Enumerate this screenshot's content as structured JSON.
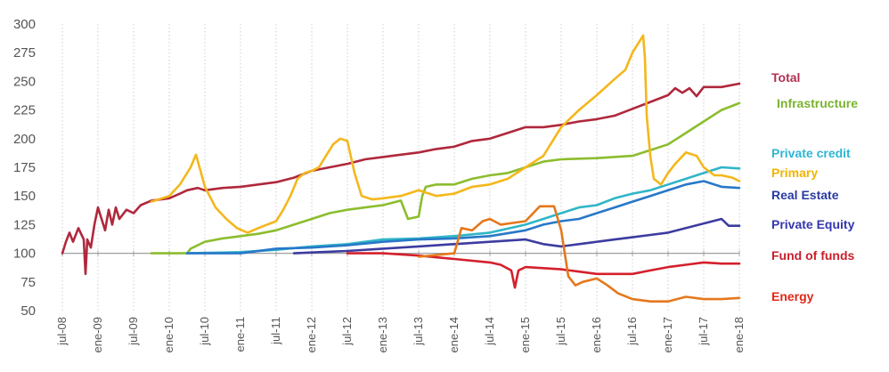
{
  "chart_data": {
    "type": "line",
    "title": "",
    "xlabel": "",
    "ylabel": "",
    "ylim": [
      50,
      300
    ],
    "yticks": [
      50,
      75,
      100,
      125,
      150,
      175,
      200,
      225,
      250,
      275,
      300
    ],
    "baseline_value": 100,
    "x_tick_labels": [
      "jul-08",
      "ene-09",
      "jul-09",
      "ene-10",
      "jul-10",
      "ene-11",
      "jul-11",
      "ene-12",
      "jul-12",
      "ene-13",
      "jul-13",
      "ene-14",
      "jul-14",
      "ene-15",
      "jul-15",
      "ene-16",
      "jul-16",
      "ene-17",
      "jul-17",
      "ene-18"
    ],
    "grid": "vertical dotted",
    "legend_placement": "right, at series end values",
    "series": [
      {
        "name": "Total",
        "color": "#b0283c",
        "label_color": "#b03050",
        "points": [
          [
            0,
            100
          ],
          [
            0.1,
            110
          ],
          [
            0.2,
            118
          ],
          [
            0.3,
            110
          ],
          [
            0.45,
            122
          ],
          [
            0.6,
            112
          ],
          [
            0.65,
            82
          ],
          [
            0.7,
            112
          ],
          [
            0.8,
            105
          ],
          [
            0.9,
            125
          ],
          [
            1.0,
            140
          ],
          [
            1.1,
            130
          ],
          [
            1.2,
            120
          ],
          [
            1.3,
            138
          ],
          [
            1.4,
            125
          ],
          [
            1.5,
            140
          ],
          [
            1.6,
            130
          ],
          [
            1.8,
            138
          ],
          [
            2.0,
            135
          ],
          [
            2.2,
            142
          ],
          [
            2.5,
            146
          ],
          [
            3.0,
            148
          ],
          [
            3.3,
            152
          ],
          [
            3.5,
            155
          ],
          [
            3.8,
            157
          ],
          [
            4.0,
            155
          ],
          [
            4.5,
            157
          ],
          [
            5.0,
            158
          ],
          [
            5.5,
            160
          ],
          [
            6.0,
            162
          ],
          [
            6.5,
            166
          ],
          [
            7.0,
            172
          ],
          [
            7.5,
            175
          ],
          [
            8.0,
            178
          ],
          [
            8.5,
            182
          ],
          [
            9.0,
            184
          ],
          [
            9.5,
            186
          ],
          [
            10.0,
            188
          ],
          [
            10.5,
            191
          ],
          [
            11.0,
            193
          ],
          [
            11.5,
            198
          ],
          [
            12.0,
            200
          ],
          [
            12.5,
            205
          ],
          [
            13.0,
            210
          ],
          [
            13.5,
            210
          ],
          [
            14.0,
            212
          ],
          [
            14.5,
            215
          ],
          [
            15.0,
            217
          ],
          [
            15.5,
            220
          ],
          [
            16.0,
            226
          ],
          [
            16.5,
            232
          ],
          [
            17.0,
            238
          ],
          [
            17.2,
            244
          ],
          [
            17.4,
            240
          ],
          [
            17.6,
            244
          ],
          [
            17.8,
            237
          ],
          [
            18.0,
            245
          ],
          [
            18.5,
            245
          ],
          [
            19.0,
            248
          ]
        ]
      },
      {
        "name": "Infrastructure",
        "color": "#8cbd2e",
        "label_color": "#7ab32e",
        "points": [
          [
            2.5,
            100
          ],
          [
            3.5,
            100
          ],
          [
            3.6,
            104
          ],
          [
            4.0,
            110
          ],
          [
            4.5,
            113
          ],
          [
            5.0,
            115
          ],
          [
            5.5,
            117
          ],
          [
            6.0,
            120
          ],
          [
            6.5,
            125
          ],
          [
            7.0,
            130
          ],
          [
            7.5,
            135
          ],
          [
            8.0,
            138
          ],
          [
            8.5,
            140
          ],
          [
            9.0,
            142
          ],
          [
            9.5,
            146
          ],
          [
            9.7,
            130
          ],
          [
            10.0,
            132
          ],
          [
            10.1,
            150
          ],
          [
            10.2,
            158
          ],
          [
            10.5,
            160
          ],
          [
            11.0,
            160
          ],
          [
            11.5,
            165
          ],
          [
            12.0,
            168
          ],
          [
            12.5,
            170
          ],
          [
            13.0,
            175
          ],
          [
            13.5,
            180
          ],
          [
            14.0,
            182
          ],
          [
            15.0,
            183
          ],
          [
            16.0,
            185
          ],
          [
            16.5,
            190
          ],
          [
            17.0,
            195
          ],
          [
            17.5,
            205
          ],
          [
            18.0,
            215
          ],
          [
            18.5,
            225
          ],
          [
            19.0,
            231
          ]
        ]
      },
      {
        "name": "Private credit",
        "color": "#2fb6c8",
        "label_color": "#2fb5d5",
        "points": [
          [
            3.5,
            100
          ],
          [
            5.0,
            101
          ],
          [
            6.0,
            103
          ],
          [
            7.0,
            106
          ],
          [
            8.0,
            108
          ],
          [
            9.0,
            112
          ],
          [
            10.0,
            113
          ],
          [
            11.0,
            115
          ],
          [
            12.0,
            118
          ],
          [
            13.0,
            125
          ],
          [
            13.5,
            130
          ],
          [
            14.0,
            135
          ],
          [
            14.5,
            140
          ],
          [
            15.0,
            142
          ],
          [
            15.5,
            148
          ],
          [
            16.0,
            152
          ],
          [
            16.5,
            155
          ],
          [
            17.0,
            160
          ],
          [
            17.5,
            165
          ],
          [
            18.0,
            170
          ],
          [
            18.5,
            175
          ],
          [
            19.0,
            174
          ]
        ]
      },
      {
        "name": "Primary",
        "color": "#f4b71c",
        "label_color": "#f0b400",
        "points": [
          [
            2.5,
            145
          ],
          [
            3.0,
            150
          ],
          [
            3.3,
            160
          ],
          [
            3.6,
            175
          ],
          [
            3.75,
            186
          ],
          [
            3.85,
            175
          ],
          [
            4.0,
            158
          ],
          [
            4.3,
            140
          ],
          [
            4.6,
            130
          ],
          [
            4.9,
            122
          ],
          [
            5.2,
            118
          ],
          [
            5.5,
            122
          ],
          [
            6.0,
            128
          ],
          [
            6.2,
            138
          ],
          [
            6.4,
            150
          ],
          [
            6.6,
            165
          ],
          [
            6.8,
            170
          ],
          [
            7.0,
            172
          ],
          [
            7.2,
            175
          ],
          [
            7.4,
            185
          ],
          [
            7.6,
            195
          ],
          [
            7.8,
            200
          ],
          [
            8.0,
            198
          ],
          [
            8.2,
            170
          ],
          [
            8.4,
            150
          ],
          [
            8.7,
            147
          ],
          [
            9.0,
            148
          ],
          [
            9.5,
            150
          ],
          [
            10.0,
            155
          ],
          [
            10.5,
            150
          ],
          [
            11.0,
            152
          ],
          [
            11.5,
            158
          ],
          [
            12.0,
            160
          ],
          [
            12.5,
            165
          ],
          [
            13.0,
            175
          ],
          [
            13.5,
            185
          ],
          [
            14.0,
            210
          ],
          [
            14.5,
            225
          ],
          [
            15.0,
            238
          ],
          [
            15.5,
            252
          ],
          [
            15.8,
            260
          ],
          [
            16.0,
            275
          ],
          [
            16.2,
            285
          ],
          [
            16.3,
            290
          ],
          [
            16.35,
            270
          ],
          [
            16.4,
            220
          ],
          [
            16.5,
            185
          ],
          [
            16.6,
            165
          ],
          [
            16.8,
            160
          ],
          [
            17.0,
            170
          ],
          [
            17.2,
            178
          ],
          [
            17.5,
            188
          ],
          [
            17.8,
            185
          ],
          [
            18.0,
            175
          ],
          [
            18.3,
            168
          ],
          [
            18.5,
            168
          ],
          [
            18.8,
            166
          ],
          [
            19.0,
            163
          ]
        ]
      },
      {
        "name": "Real Estate",
        "color": "#2878c8",
        "label_color": "#2a3aa0",
        "points": [
          [
            3.5,
            100
          ],
          [
            5.0,
            100
          ],
          [
            6.0,
            104
          ],
          [
            7.0,
            105
          ],
          [
            8.0,
            107
          ],
          [
            9.0,
            110
          ],
          [
            10.0,
            112
          ],
          [
            11.0,
            113
          ],
          [
            12.0,
            115
          ],
          [
            13.0,
            120
          ],
          [
            13.5,
            125
          ],
          [
            14.0,
            128
          ],
          [
            14.5,
            130
          ],
          [
            15.0,
            135
          ],
          [
            15.5,
            140
          ],
          [
            16.0,
            145
          ],
          [
            16.5,
            150
          ],
          [
            17.0,
            155
          ],
          [
            17.5,
            160
          ],
          [
            18.0,
            163
          ],
          [
            18.5,
            158
          ],
          [
            19.0,
            157
          ]
        ]
      },
      {
        "name": "Private Equity",
        "color": "#3c3ca0",
        "label_color": "#3535b0",
        "points": [
          [
            6.5,
            100
          ],
          [
            8.0,
            102
          ],
          [
            9.0,
            104
          ],
          [
            10.0,
            106
          ],
          [
            11.0,
            108
          ],
          [
            12.0,
            110
          ],
          [
            13.0,
            112
          ],
          [
            13.5,
            108
          ],
          [
            14.0,
            106
          ],
          [
            14.5,
            108
          ],
          [
            15.0,
            110
          ],
          [
            15.5,
            112
          ],
          [
            16.0,
            114
          ],
          [
            16.5,
            116
          ],
          [
            17.0,
            118
          ],
          [
            17.5,
            122
          ],
          [
            18.0,
            126
          ],
          [
            18.5,
            130
          ],
          [
            18.7,
            124
          ],
          [
            19.0,
            124
          ]
        ]
      },
      {
        "name": "Fund of funds",
        "color": "#d4202c",
        "label_color": "#c8202c",
        "points": [
          [
            8.0,
            100
          ],
          [
            9.0,
            100
          ],
          [
            10.0,
            98
          ],
          [
            11.0,
            95
          ],
          [
            12.0,
            92
          ],
          [
            12.3,
            90
          ],
          [
            12.6,
            85
          ],
          [
            12.7,
            70
          ],
          [
            12.8,
            85
          ],
          [
            13.0,
            88
          ],
          [
            14.0,
            86
          ],
          [
            14.5,
            84
          ],
          [
            15.0,
            82
          ],
          [
            16.0,
            82
          ],
          [
            16.5,
            85
          ],
          [
            17.0,
            88
          ],
          [
            17.5,
            90
          ],
          [
            18.0,
            92
          ],
          [
            18.5,
            91
          ],
          [
            19.0,
            91
          ]
        ]
      },
      {
        "name": "Energy",
        "color": "#e5781c",
        "label_color": "#e02818",
        "points": [
          [
            10.0,
            97
          ],
          [
            11.0,
            100
          ],
          [
            11.2,
            122
          ],
          [
            11.5,
            120
          ],
          [
            11.8,
            128
          ],
          [
            12.0,
            130
          ],
          [
            12.3,
            125
          ],
          [
            13.0,
            128
          ],
          [
            13.4,
            141
          ],
          [
            13.8,
            141
          ],
          [
            14.0,
            120
          ],
          [
            14.2,
            80
          ],
          [
            14.4,
            72
          ],
          [
            14.6,
            75
          ],
          [
            15.0,
            78
          ],
          [
            15.3,
            72
          ],
          [
            15.6,
            65
          ],
          [
            16.0,
            60
          ],
          [
            16.5,
            58
          ],
          [
            17.0,
            58
          ],
          [
            17.5,
            62
          ],
          [
            18.0,
            60
          ],
          [
            18.5,
            60
          ],
          [
            19.0,
            61
          ]
        ]
      }
    ]
  }
}
